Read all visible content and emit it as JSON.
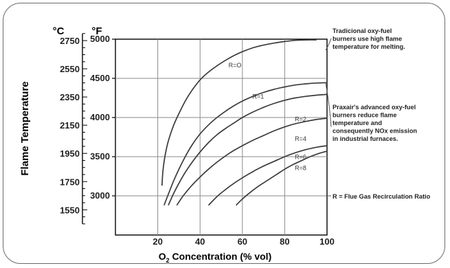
{
  "chart_data": {
    "type": "line",
    "ylabel": "Flame Temperature",
    "xlabel_prefix": "O",
    "xlabel_sub": "2",
    "xlabel_suffix": " Concentration (% vol)",
    "unit_c": "°C",
    "unit_f": "°F",
    "xlim": [
      0,
      100
    ],
    "flim": [
      2500,
      5000
    ],
    "x_ticks": [
      20,
      40,
      60,
      80,
      100
    ],
    "f_ticks": [
      3000,
      3500,
      4000,
      4500,
      5000
    ],
    "c_ticks": [
      1550,
      1750,
      1950,
      2150,
      2350,
      2550,
      2750
    ],
    "grid": true,
    "series": [
      {
        "name": "R=O",
        "label_at": [
          56.5,
          4640
        ],
        "x": [
          22,
          22.5,
          23.5,
          25,
          27.5,
          30,
          33,
          36,
          40,
          44,
          48,
          52,
          56,
          60,
          65,
          70,
          75,
          80,
          85,
          90,
          95
        ],
        "y": [
          3130,
          3330,
          3520,
          3700,
          3900,
          4050,
          4210,
          4340,
          4480,
          4580,
          4660,
          4730,
          4790,
          4840,
          4890,
          4925,
          4950,
          4970,
          4985,
          4990,
          4990
        ]
      },
      {
        "name": "R=1",
        "label_at": [
          67.5,
          4240
        ],
        "x": [
          23,
          25,
          27.5,
          30,
          33,
          36,
          40,
          44,
          48,
          52,
          56,
          60,
          65,
          70,
          75,
          80,
          85,
          90,
          95,
          100
        ],
        "y": [
          2880,
          3020,
          3190,
          3340,
          3500,
          3640,
          3790,
          3905,
          4000,
          4080,
          4150,
          4210,
          4270,
          4320,
          4360,
          4390,
          4415,
          4430,
          4440,
          4445
        ]
      },
      {
        "name": "R=2",
        "label_at": [
          87.5,
          3950
        ],
        "x": [
          25,
          27.5,
          30,
          33,
          36,
          40,
          44,
          48,
          52,
          56,
          60,
          65,
          70,
          75,
          80,
          85,
          90,
          95,
          100
        ],
        "y": [
          2880,
          3030,
          3160,
          3300,
          3420,
          3560,
          3680,
          3780,
          3860,
          3930,
          4000,
          4070,
          4130,
          4180,
          4220,
          4250,
          4270,
          4285,
          4295
        ]
      },
      {
        "name": "R=4",
        "label_at": [
          87.5,
          3700
        ],
        "x": [
          29,
          32,
          36,
          40,
          44,
          48,
          52,
          56,
          60,
          65,
          70,
          75,
          80,
          85,
          90,
          95,
          100
        ],
        "y": [
          2880,
          3000,
          3130,
          3240,
          3340,
          3430,
          3510,
          3580,
          3640,
          3710,
          3770,
          3830,
          3880,
          3920,
          3950,
          3975,
          3990
        ]
      },
      {
        "name": "R=6",
        "label_at": [
          87.5,
          3470
        ],
        "x": [
          44,
          48,
          52,
          56,
          60,
          65,
          70,
          75,
          80,
          85,
          90,
          95,
          100
        ],
        "y": [
          2880,
          2990,
          3080,
          3160,
          3230,
          3310,
          3380,
          3440,
          3500,
          3550,
          3590,
          3620,
          3640
        ]
      },
      {
        "name": "R=8",
        "label_at": [
          87.5,
          3330
        ],
        "x": [
          57,
          60,
          64,
          68,
          72,
          76,
          80,
          84,
          88,
          92,
          96,
          100
        ],
        "y": [
          2880,
          2960,
          3050,
          3130,
          3200,
          3270,
          3340,
          3400,
          3450,
          3500,
          3540,
          3570
        ]
      }
    ],
    "annotations": [
      {
        "lines": [
          "Tradicional oxy-fuel",
          "burners use high flame",
          "temperature for melting."
        ]
      },
      {
        "lines": [
          "Praxair's advanced oxy-fuel",
          "burners reduce flame",
          "temperature and",
          "consequently NOx emission",
          "in industrial furnaces."
        ]
      },
      {
        "lines": [
          "R = Flue Gas Recirculation Ratio"
        ]
      }
    ],
    "colors": {
      "line": "#3a3a3a",
      "grid": "#8a8a8a",
      "axis": "#000000",
      "text": "#222222",
      "frame": "#6a6a6a"
    }
  }
}
